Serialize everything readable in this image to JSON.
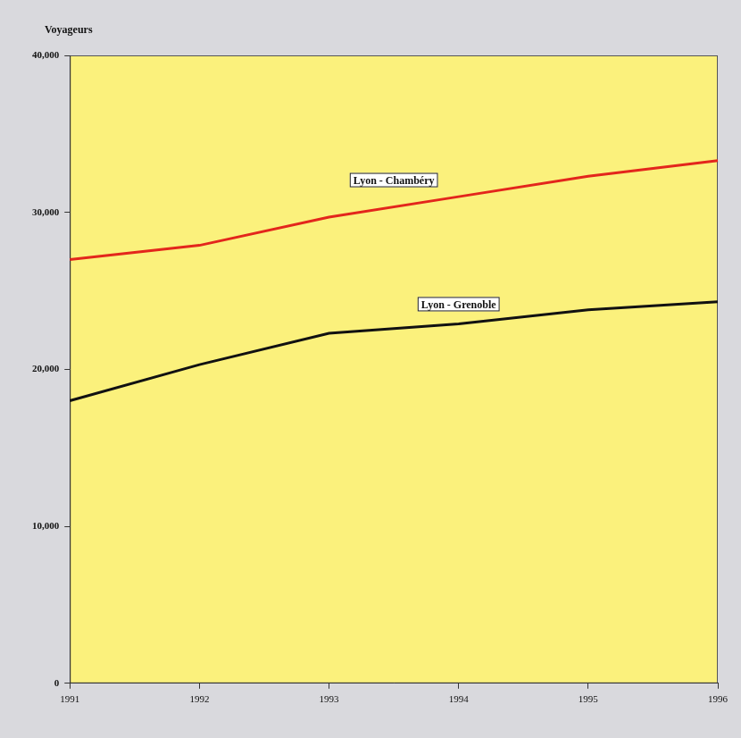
{
  "chart_data": {
    "type": "line",
    "y_label": "Voyageurs",
    "categories": [
      "1991",
      "1992",
      "1993",
      "1994",
      "1995",
      "1996"
    ],
    "series": [
      {
        "name": "Lyon - Chambéry",
        "color": "#e3261c",
        "values": [
          27000,
          27900,
          29700,
          31000,
          32300,
          33300
        ]
      },
      {
        "name": "Lyon - Grenoble",
        "color": "#111111",
        "values": [
          18000,
          20300,
          22300,
          22900,
          23800,
          24300
        ]
      }
    ],
    "ylim": [
      0,
      40000
    ],
    "yticks": [
      0,
      {
        "value": 10000,
        "label": "10,000"
      },
      {
        "value": 20000,
        "label": "20,000"
      },
      {
        "value": 30000,
        "label": "30,000"
      },
      {
        "value": 40000,
        "label": "40,000"
      }
    ],
    "grid": false
  }
}
